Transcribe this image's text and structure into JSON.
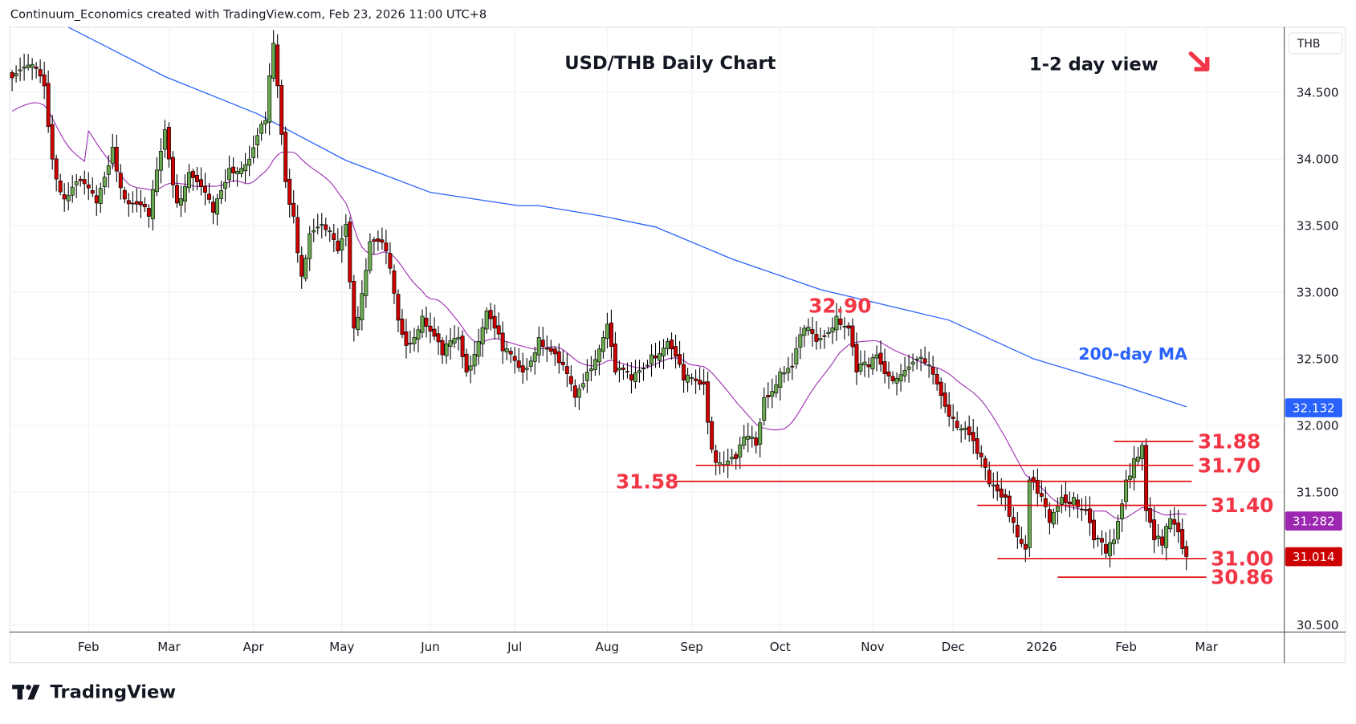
{
  "header": {
    "attribution": "Continuum_Economics created with TradingView.com, Feb 23, 2026 11:00 UTC+8"
  },
  "footer": {
    "brand": "TradingView"
  },
  "chart_data": {
    "type": "candlestick",
    "title": "USD/THB Daily Chart",
    "subtitle": "1-2 day view",
    "view_arrow": "down-right",
    "currency": "THB",
    "ylim": [
      30.45,
      35.05
    ],
    "y_ticks": [
      "34.500",
      "34.000",
      "33.500",
      "33.000",
      "32.500",
      "32.000",
      "31.500",
      "30.500"
    ],
    "y_tick_values": [
      34.5,
      34.0,
      33.5,
      33.0,
      32.5,
      32.0,
      31.5,
      30.5
    ],
    "x_ticks": [
      {
        "label": "Feb",
        "day": 19
      },
      {
        "label": "Mar",
        "day": 39
      },
      {
        "label": "Apr",
        "day": 60
      },
      {
        "label": "May",
        "day": 82
      },
      {
        "label": "Jun",
        "day": 104
      },
      {
        "label": "Jul",
        "day": 125
      },
      {
        "label": "Aug",
        "day": 148
      },
      {
        "label": "Sep",
        "day": 169
      },
      {
        "label": "Oct",
        "day": 191
      },
      {
        "label": "Nov",
        "day": 214
      },
      {
        "label": "Dec",
        "day": 234
      },
      {
        "label": "2026",
        "day": 256
      },
      {
        "label": "Feb",
        "day": 277
      },
      {
        "label": "Mar",
        "day": 297
      }
    ],
    "num_days": 293,
    "close_anchors": [
      [
        0,
        34.61
      ],
      [
        6,
        34.68
      ],
      [
        8,
        34.55
      ],
      [
        10,
        34.0
      ],
      [
        13,
        33.7
      ],
      [
        16,
        33.83
      ],
      [
        21,
        33.67
      ],
      [
        25,
        34.09
      ],
      [
        28,
        33.7
      ],
      [
        34,
        33.57
      ],
      [
        38,
        34.22
      ],
      [
        41,
        33.67
      ],
      [
        44,
        33.9
      ],
      [
        50,
        33.6
      ],
      [
        54,
        33.93
      ],
      [
        59,
        34.0
      ],
      [
        63,
        34.29
      ],
      [
        65,
        34.87
      ],
      [
        66,
        34.55
      ],
      [
        68,
        33.83
      ],
      [
        70,
        33.57
      ],
      [
        72,
        33.12
      ],
      [
        74,
        33.44
      ],
      [
        78,
        33.47
      ],
      [
        81,
        33.31
      ],
      [
        83,
        33.51
      ],
      [
        85,
        32.73
      ],
      [
        87,
        32.99
      ],
      [
        89,
        33.38
      ],
      [
        93,
        33.31
      ],
      [
        96,
        32.79
      ],
      [
        98,
        32.6
      ],
      [
        102,
        32.82
      ],
      [
        107,
        32.53
      ],
      [
        111,
        32.66
      ],
      [
        113,
        32.4
      ],
      [
        118,
        32.86
      ],
      [
        120,
        32.73
      ],
      [
        122,
        32.56
      ],
      [
        127,
        32.4
      ],
      [
        131,
        32.66
      ],
      [
        136,
        32.47
      ],
      [
        140,
        32.21
      ],
      [
        143,
        32.4
      ],
      [
        148,
        32.76
      ],
      [
        150,
        32.4
      ],
      [
        154,
        32.34
      ],
      [
        159,
        32.53
      ],
      [
        163,
        32.63
      ],
      [
        167,
        32.34
      ],
      [
        172,
        32.31
      ],
      [
        174,
        31.82
      ],
      [
        176,
        31.72
      ],
      [
        180,
        31.75
      ],
      [
        183,
        31.92
      ],
      [
        185,
        31.85
      ],
      [
        187,
        32.21
      ],
      [
        191,
        32.4
      ],
      [
        194,
        32.44
      ],
      [
        197,
        32.73
      ],
      [
        200,
        32.63
      ],
      [
        205,
        32.82
      ],
      [
        208,
        32.73
      ],
      [
        210,
        32.4
      ],
      [
        213,
        32.44
      ],
      [
        215,
        32.53
      ],
      [
        218,
        32.37
      ],
      [
        223,
        32.44
      ],
      [
        227,
        32.47
      ],
      [
        230,
        32.31
      ],
      [
        234,
        32.05
      ],
      [
        237,
        31.98
      ],
      [
        240,
        31.79
      ],
      [
        243,
        31.56
      ],
      [
        247,
        31.46
      ],
      [
        249,
        31.27
      ],
      [
        252,
        31.07
      ],
      [
        253,
        31.59
      ],
      [
        255,
        31.49
      ],
      [
        258,
        31.27
      ],
      [
        261,
        31.46
      ],
      [
        264,
        31.46
      ],
      [
        267,
        31.36
      ],
      [
        269,
        31.14
      ],
      [
        272,
        31.04
      ],
      [
        274,
        31.14
      ],
      [
        277,
        31.59
      ],
      [
        279,
        31.75
      ],
      [
        281,
        31.85
      ],
      [
        282,
        31.36
      ],
      [
        284,
        31.14
      ],
      [
        286,
        31.1
      ],
      [
        288,
        31.3
      ],
      [
        290,
        31.2
      ],
      [
        292,
        31.014
      ]
    ],
    "ma200": {
      "label": "200-day MA",
      "last": "32.132",
      "color": "#2962ff",
      "points": [
        [
          14,
          34.99
        ],
        [
          38,
          34.62
        ],
        [
          61,
          34.34
        ],
        [
          83,
          33.99
        ],
        [
          104,
          33.75
        ],
        [
          126,
          33.65
        ],
        [
          131,
          33.65
        ],
        [
          147,
          33.57
        ],
        [
          160,
          33.49
        ],
        [
          179,
          33.25
        ],
        [
          201,
          33.02
        ],
        [
          233,
          32.79
        ],
        [
          254,
          32.5
        ],
        [
          276,
          32.3
        ],
        [
          292,
          32.14
        ]
      ]
    },
    "ma20": {
      "last": "31.282",
      "color": "#9c27b0"
    },
    "last_price": {
      "value": "31.014",
      "color": "#cc0000"
    },
    "levels": [
      {
        "label": "32.90",
        "value": 32.9,
        "line": false
      },
      {
        "label": "31.88",
        "value": 31.88,
        "line": true,
        "from_day": 274
      },
      {
        "label": "31.70",
        "value": 31.7,
        "line": true,
        "from_day": 170
      },
      {
        "label": "31.58",
        "value": 31.58,
        "line": true,
        "from_day": 165
      },
      {
        "label": "31.40",
        "value": 31.4,
        "line": true,
        "from_day": 240
      },
      {
        "label": "31.00",
        "value": 31.0,
        "line": true,
        "from_day": 245
      },
      {
        "label": "30.86",
        "value": 30.86,
        "line": true,
        "from_day": 260
      }
    ],
    "colors": {
      "up": "#6aa84f",
      "down": "#cc0000",
      "level": "#f23645"
    }
  }
}
